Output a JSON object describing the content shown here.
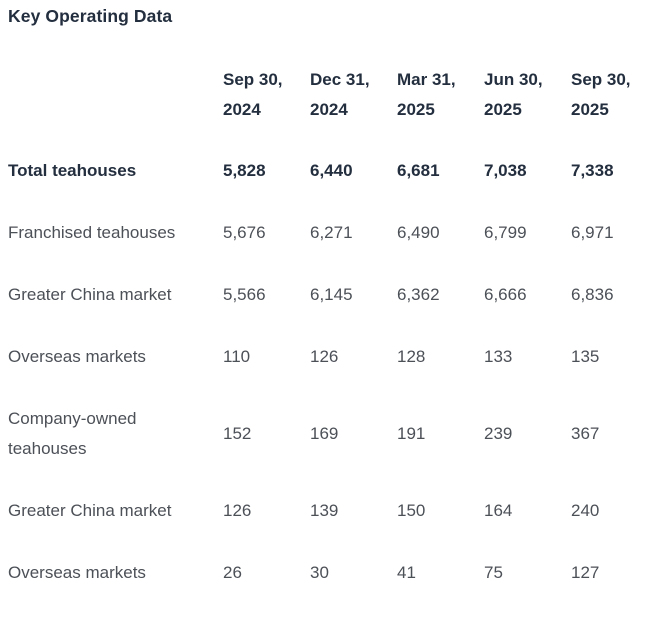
{
  "chart_data": {
    "type": "table",
    "title": "Key Operating Data",
    "columns": [
      "Sep 30, 2024",
      "Dec 31, 2024",
      "Mar 31, 2025",
      "Jun 30, 2025",
      "Sep 30, 2025"
    ],
    "rows": [
      {
        "label": "Total teahouses",
        "emphasis": true,
        "values": [
          "5,828",
          "6,440",
          "6,681",
          "7,038",
          "7,338"
        ]
      },
      {
        "label": "Franchised teahouses",
        "emphasis": false,
        "values": [
          "5,676",
          "6,271",
          "6,490",
          "6,799",
          "6,971"
        ]
      },
      {
        "label": "Greater China market",
        "emphasis": false,
        "values": [
          "5,566",
          "6,145",
          "6,362",
          "6,666",
          "6,836"
        ]
      },
      {
        "label": "Overseas markets",
        "emphasis": false,
        "values": [
          "110",
          "126",
          "128",
          "133",
          "135"
        ]
      },
      {
        "label": "Company-owned teahouses",
        "emphasis": false,
        "values": [
          "152",
          "169",
          "191",
          "239",
          "367"
        ]
      },
      {
        "label": "Greater China market",
        "emphasis": false,
        "values": [
          "126",
          "139",
          "150",
          "164",
          "240"
        ]
      },
      {
        "label": "Overseas markets",
        "emphasis": false,
        "values": [
          "26",
          "30",
          "41",
          "75",
          "127"
        ]
      }
    ]
  },
  "colors": {
    "heading_text": "#232e3e",
    "body_text": "#4c5057",
    "background": "#ffffff"
  }
}
